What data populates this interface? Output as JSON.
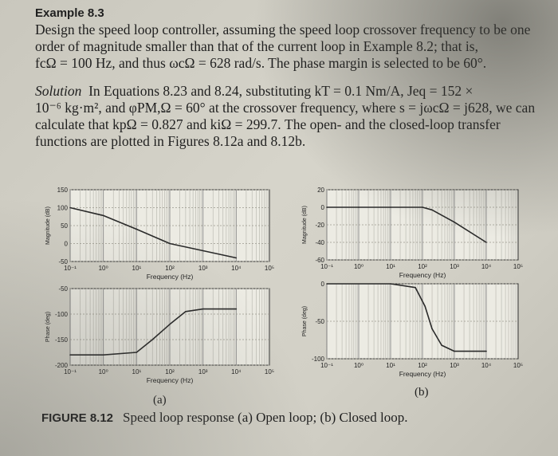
{
  "example": {
    "title": "Example 8.3",
    "problem_lines": [
      "Design the speed loop controller, assuming the speed loop crossover frequency to be one",
      "order of magnitude smaller than that of the current loop in Example 8.2; that is,",
      "fcΩ = 100 Hz, and thus ωcΩ = 628 rad/s. The phase margin is selected to be 60°."
    ],
    "solution_label": "Solution",
    "solution_lines": [
      "In Equations 8.23 and 8.24, substituting kT = 0.1 Nm/A, Jeq = 152 ×",
      "10⁻⁶ kg·m², and φPM,Ω = 60° at the crossover frequency, where s = jωcΩ = j628, we can",
      "calculate that kpΩ = 0.827 and kiΩ = 299.7. The open- and the closed-loop transfer",
      "functions are plotted in Figures 8.12a and 8.12b."
    ]
  },
  "figure": {
    "label": "FIGURE 8.12",
    "caption": "Speed loop response (a) Open loop; (b) Closed loop.",
    "panel_a_label": "(a)",
    "panel_b_label": "(b)"
  },
  "chart_data": [
    {
      "type": "line",
      "panel": "a-magnitude",
      "xlabel": "Frequency (Hz)",
      "ylabel": "Magnitude (dB)",
      "xscale": "log",
      "xlim": [
        0.1,
        100000
      ],
      "ylim": [
        -50,
        150
      ],
      "xticks": [
        "10⁻¹",
        "10⁰",
        "10¹",
        "10²",
        "10³",
        "10⁴",
        "10⁵"
      ],
      "yticks": [
        "150",
        "100",
        "50",
        "0",
        "-50"
      ],
      "grid": true,
      "x": [
        0.1,
        1,
        10,
        100,
        1000,
        10000
      ],
      "y": [
        100,
        78,
        40,
        0,
        -20,
        -40
      ]
    },
    {
      "type": "line",
      "panel": "a-phase",
      "xlabel": "Frequency (Hz)",
      "ylabel": "Phase (deg)",
      "xscale": "log",
      "xlim": [
        0.1,
        100000
      ],
      "ylim": [
        -200,
        -50
      ],
      "xticks": [
        "10⁻¹",
        "10⁰",
        "10¹",
        "10²",
        "10³",
        "10⁴",
        "10⁵"
      ],
      "yticks": [
        "-50",
        "-100",
        "-150",
        "-200"
      ],
      "grid": true,
      "x": [
        0.1,
        1,
        10,
        30,
        100,
        300,
        1000,
        10000
      ],
      "y": [
        -180,
        -180,
        -175,
        -150,
        -120,
        -95,
        -90,
        -90
      ]
    },
    {
      "type": "line",
      "panel": "b-magnitude",
      "xlabel": "Frequency (Hz)",
      "ylabel": "Magnitude (dB)",
      "xscale": "log",
      "xlim": [
        0.1,
        100000
      ],
      "ylim": [
        -60,
        20
      ],
      "xticks": [
        "10⁻¹",
        "10⁰",
        "10¹",
        "10²",
        "10³",
        "10⁴",
        "10⁵"
      ],
      "yticks": [
        "20",
        "0",
        "-20",
        "-40",
        "-60"
      ],
      "grid": true,
      "x": [
        0.1,
        1,
        10,
        100,
        200,
        1000,
        10000
      ],
      "y": [
        0,
        0,
        0,
        0,
        -3,
        -17,
        -40
      ]
    },
    {
      "type": "line",
      "panel": "b-phase",
      "xlabel": "Frequency (Hz)",
      "ylabel": "Phase (deg)",
      "xscale": "log",
      "xlim": [
        0.1,
        100000
      ],
      "ylim": [
        -100,
        0
      ],
      "xticks": [
        "10⁻¹",
        "10⁰",
        "10¹",
        "10²",
        "10³",
        "10⁴",
        "10⁵"
      ],
      "yticks": [
        "0",
        "-50",
        "-100"
      ],
      "grid": true,
      "x": [
        0.1,
        10,
        60,
        120,
        200,
        400,
        1000,
        10000
      ],
      "y": [
        0,
        0,
        -5,
        -30,
        -60,
        -82,
        -90,
        -90
      ]
    }
  ]
}
